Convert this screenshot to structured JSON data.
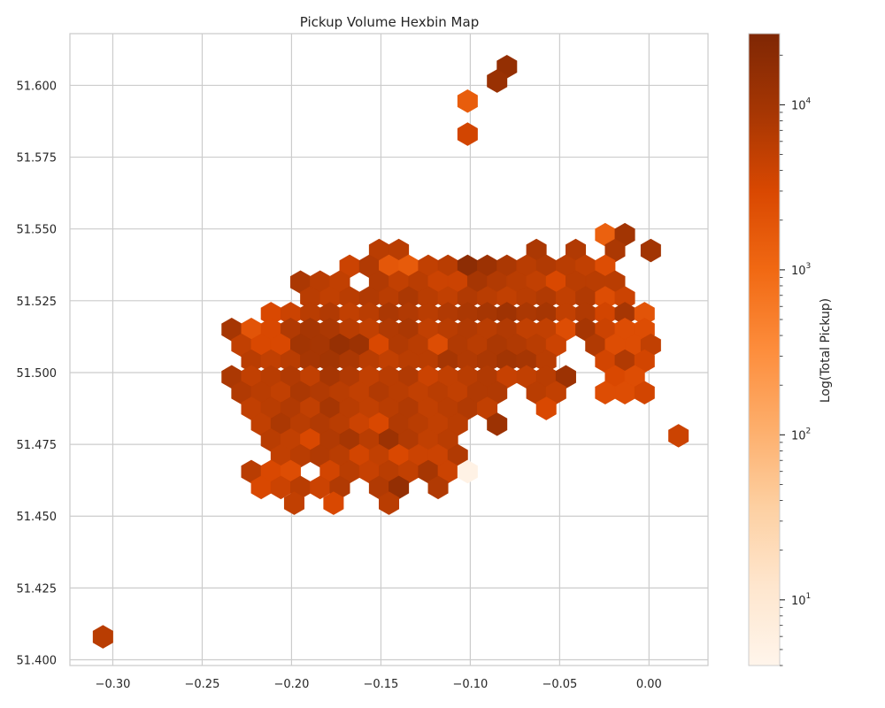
{
  "chart_data": {
    "type": "heatmap",
    "subtype": "hexbin",
    "title": "Pickup Volume Hexbin Map",
    "xlabel": "",
    "ylabel": "",
    "xlim": [
      -0.324,
      0.033
    ],
    "ylim": [
      51.398,
      51.618
    ],
    "x_ticks": [
      -0.3,
      -0.25,
      -0.2,
      -0.15,
      -0.1,
      -0.05,
      0.0
    ],
    "x_tick_labels": [
      "−0.30",
      "−0.25",
      "−0.20",
      "−0.15",
      "−0.10",
      "−0.05",
      "0.00"
    ],
    "y_ticks": [
      51.4,
      51.425,
      51.45,
      51.475,
      51.5,
      51.525,
      51.55,
      51.575,
      51.6
    ],
    "y_tick_labels": [
      "51.400",
      "51.425",
      "51.450",
      "51.475",
      "51.500",
      "51.525",
      "51.550",
      "51.575",
      "51.600"
    ],
    "grid": true,
    "hex_width_x": 0.011,
    "colorbar": {
      "label": "Log(Total Pickup)",
      "scale": "log",
      "colormap": "Oranges",
      "vmin": 4,
      "vmax": 27000,
      "major_ticks": [
        10,
        100,
        1000,
        10000
      ],
      "major_tick_labels": [
        {
          "base": "10",
          "exp": "1"
        },
        {
          "base": "10",
          "exp": "2"
        },
        {
          "base": "10",
          "exp": "3"
        },
        {
          "base": "10",
          "exp": "4"
        }
      ]
    },
    "colors": {
      "cmap": [
        "#fff5eb",
        "#fee6ce",
        "#fdd0a2",
        "#fdae6b",
        "#fd8d3c",
        "#f16913",
        "#d94801",
        "#a63603",
        "#7f2704"
      ],
      "grid": "#cccccc",
      "axes_edge": "#cccccc"
    },
    "hexagons": [
      [
        -0.0795,
        51.6065,
        15000
      ],
      [
        -0.085,
        51.6015,
        13000
      ],
      [
        -0.1015,
        51.5945,
        1500
      ],
      [
        -0.1015,
        51.583,
        3500
      ],
      [
        -0.0245,
        51.548,
        1300
      ],
      [
        -0.0135,
        51.548,
        10000
      ],
      [
        -0.019,
        51.5425,
        8000
      ],
      [
        0.001,
        51.5425,
        10000
      ],
      [
        -0.151,
        51.5425,
        6000
      ],
      [
        -0.14,
        51.5425,
        6000
      ],
      [
        -0.063,
        51.5425,
        8000
      ],
      [
        -0.041,
        51.5425,
        7000
      ],
      [
        -0.1675,
        51.537,
        4000
      ],
      [
        -0.1565,
        51.537,
        7000
      ],
      [
        -0.1455,
        51.537,
        1800
      ],
      [
        -0.1345,
        51.537,
        1600
      ],
      [
        -0.1235,
        51.537,
        5000
      ],
      [
        -0.1125,
        51.537,
        6000
      ],
      [
        -0.1015,
        51.537,
        18000
      ],
      [
        -0.0905,
        51.537,
        12000
      ],
      [
        -0.0795,
        51.537,
        8000
      ],
      [
        -0.0685,
        51.537,
        6000
      ],
      [
        -0.0575,
        51.537,
        7000
      ],
      [
        -0.0465,
        51.537,
        6000
      ],
      [
        -0.0355,
        51.537,
        5000
      ],
      [
        -0.0245,
        51.537,
        2500
      ],
      [
        -0.195,
        51.5315,
        8000
      ],
      [
        -0.184,
        51.5315,
        6000
      ],
      [
        -0.173,
        51.5315,
        5000
      ],
      [
        -0.151,
        51.5315,
        7000
      ],
      [
        -0.14,
        51.5315,
        5000
      ],
      [
        -0.129,
        51.5315,
        6000
      ],
      [
        -0.118,
        51.5315,
        4000
      ],
      [
        -0.107,
        51.5315,
        4000
      ],
      [
        -0.096,
        51.5315,
        9000
      ],
      [
        -0.085,
        51.5315,
        7000
      ],
      [
        -0.074,
        51.5315,
        6000
      ],
      [
        -0.063,
        51.5315,
        5000
      ],
      [
        -0.052,
        51.5315,
        3000
      ],
      [
        -0.041,
        51.5315,
        6000
      ],
      [
        -0.03,
        51.5315,
        6000
      ],
      [
        -0.019,
        51.5315,
        6000
      ],
      [
        -0.1895,
        51.526,
        6000
      ],
      [
        -0.1785,
        51.526,
        5000
      ],
      [
        -0.1675,
        51.526,
        6000
      ],
      [
        -0.1565,
        51.526,
        7000
      ],
      [
        -0.1455,
        51.526,
        6000
      ],
      [
        -0.1345,
        51.526,
        8000
      ],
      [
        -0.1235,
        51.526,
        6000
      ],
      [
        -0.1125,
        51.526,
        5000
      ],
      [
        -0.1015,
        51.526,
        7000
      ],
      [
        -0.0905,
        51.526,
        6000
      ],
      [
        -0.0795,
        51.526,
        5000
      ],
      [
        -0.0685,
        51.526,
        6000
      ],
      [
        -0.0575,
        51.526,
        7000
      ],
      [
        -0.0465,
        51.526,
        5000
      ],
      [
        -0.0355,
        51.526,
        7000
      ],
      [
        -0.0245,
        51.526,
        2500
      ],
      [
        -0.0135,
        51.526,
        4000
      ],
      [
        -0.2115,
        51.5205,
        3000
      ],
      [
        -0.2005,
        51.5205,
        4000
      ],
      [
        -0.1895,
        51.5205,
        6000
      ],
      [
        -0.1785,
        51.5205,
        7000
      ],
      [
        -0.1675,
        51.5205,
        5000
      ],
      [
        -0.1565,
        51.5205,
        6000
      ],
      [
        -0.1455,
        51.5205,
        8000
      ],
      [
        -0.1345,
        51.5205,
        7000
      ],
      [
        -0.1235,
        51.5205,
        6000
      ],
      [
        -0.1125,
        51.5205,
        7000
      ],
      [
        -0.1015,
        51.5205,
        8000
      ],
      [
        -0.0905,
        51.5205,
        9000
      ],
      [
        -0.0795,
        51.5205,
        11000
      ],
      [
        -0.0685,
        51.5205,
        8000
      ],
      [
        -0.0575,
        51.5205,
        9000
      ],
      [
        -0.0465,
        51.5205,
        5000
      ],
      [
        -0.0355,
        51.5205,
        7000
      ],
      [
        -0.0245,
        51.5205,
        3500
      ],
      [
        -0.0135,
        51.5205,
        9000
      ],
      [
        -0.0025,
        51.5205,
        2000
      ],
      [
        -0.2335,
        51.515,
        9000
      ],
      [
        -0.2225,
        51.515,
        2000
      ],
      [
        -0.2115,
        51.515,
        3000
      ],
      [
        -0.2005,
        51.515,
        7000
      ],
      [
        -0.1895,
        51.515,
        9000
      ],
      [
        -0.1785,
        51.515,
        8000
      ],
      [
        -0.1675,
        51.515,
        6000
      ],
      [
        -0.1565,
        51.515,
        5000
      ],
      [
        -0.1455,
        51.515,
        7000
      ],
      [
        -0.1345,
        51.515,
        8000
      ],
      [
        -0.1235,
        51.515,
        5000
      ],
      [
        -0.1125,
        51.515,
        6000
      ],
      [
        -0.1015,
        51.515,
        7000
      ],
      [
        -0.0905,
        51.515,
        6000
      ],
      [
        -0.0795,
        51.515,
        7000
      ],
      [
        -0.0685,
        51.515,
        5000
      ],
      [
        -0.0575,
        51.515,
        5000
      ],
      [
        -0.0465,
        51.515,
        2500
      ],
      [
        -0.0355,
        51.515,
        9000
      ],
      [
        -0.0245,
        51.515,
        4000
      ],
      [
        -0.0135,
        51.515,
        2500
      ],
      [
        -0.0025,
        51.515,
        2500
      ],
      [
        -0.228,
        51.5095,
        5000
      ],
      [
        -0.217,
        51.5095,
        3000
      ],
      [
        -0.206,
        51.5095,
        3000
      ],
      [
        -0.195,
        51.5095,
        10000
      ],
      [
        -0.184,
        51.5095,
        9000
      ],
      [
        -0.173,
        51.5095,
        14000
      ],
      [
        -0.162,
        51.5095,
        12000
      ],
      [
        -0.151,
        51.5095,
        3000
      ],
      [
        -0.14,
        51.5095,
        7000
      ],
      [
        -0.129,
        51.5095,
        6000
      ],
      [
        -0.118,
        51.5095,
        2500
      ],
      [
        -0.107,
        51.5095,
        7000
      ],
      [
        -0.096,
        51.5095,
        6000
      ],
      [
        -0.085,
        51.5095,
        8000
      ],
      [
        -0.074,
        51.5095,
        7000
      ],
      [
        -0.063,
        51.5095,
        6000
      ],
      [
        -0.052,
        51.5095,
        4000
      ],
      [
        -0.03,
        51.5095,
        7000
      ],
      [
        -0.019,
        51.5095,
        2500
      ],
      [
        -0.008,
        51.5095,
        2500
      ],
      [
        0.001,
        51.5095,
        5000
      ],
      [
        -0.2225,
        51.504,
        6000
      ],
      [
        -0.2115,
        51.504,
        5000
      ],
      [
        -0.2005,
        51.504,
        6000
      ],
      [
        -0.1895,
        51.504,
        9000
      ],
      [
        -0.1785,
        51.504,
        10000
      ],
      [
        -0.1675,
        51.504,
        8000
      ],
      [
        -0.1565,
        51.504,
        6000
      ],
      [
        -0.1455,
        51.504,
        5000
      ],
      [
        -0.1345,
        51.504,
        6000
      ],
      [
        -0.1235,
        51.504,
        6000
      ],
      [
        -0.1125,
        51.504,
        9000
      ],
      [
        -0.1015,
        51.504,
        7000
      ],
      [
        -0.0905,
        51.504,
        8000
      ],
      [
        -0.0795,
        51.504,
        10000
      ],
      [
        -0.0685,
        51.504,
        9000
      ],
      [
        -0.0575,
        51.504,
        6000
      ],
      [
        -0.0245,
        51.504,
        3500
      ],
      [
        -0.0135,
        51.504,
        7000
      ],
      [
        -0.0025,
        51.504,
        3500
      ],
      [
        -0.2335,
        51.4985,
        8000
      ],
      [
        -0.2225,
        51.4985,
        5000
      ],
      [
        -0.2115,
        51.4985,
        6000
      ],
      [
        -0.2005,
        51.4985,
        7000
      ],
      [
        -0.1895,
        51.4985,
        5000
      ],
      [
        -0.1785,
        51.4985,
        9000
      ],
      [
        -0.1675,
        51.4985,
        7000
      ],
      [
        -0.1565,
        51.4985,
        5000
      ],
      [
        -0.1455,
        51.4985,
        6000
      ],
      [
        -0.1345,
        51.4985,
        7000
      ],
      [
        -0.1235,
        51.4985,
        4000
      ],
      [
        -0.1125,
        51.4985,
        5000
      ],
      [
        -0.1015,
        51.4985,
        6000
      ],
      [
        -0.0905,
        51.4985,
        7000
      ],
      [
        -0.0795,
        51.4985,
        4500
      ],
      [
        -0.0685,
        51.4985,
        5000
      ],
      [
        -0.0575,
        51.4985,
        6000
      ],
      [
        -0.0465,
        51.4985,
        12000
      ],
      [
        -0.019,
        51.4985,
        3000
      ],
      [
        -0.008,
        51.4985,
        2500
      ],
      [
        -0.228,
        51.493,
        7000
      ],
      [
        -0.217,
        51.493,
        6000
      ],
      [
        -0.206,
        51.493,
        5000
      ],
      [
        -0.195,
        51.493,
        8000
      ],
      [
        -0.184,
        51.493,
        7000
      ],
      [
        -0.173,
        51.493,
        6000
      ],
      [
        -0.162,
        51.493,
        5000
      ],
      [
        -0.151,
        51.493,
        7000
      ],
      [
        -0.14,
        51.493,
        6000
      ],
      [
        -0.129,
        51.493,
        5000
      ],
      [
        -0.118,
        51.493,
        6000
      ],
      [
        -0.107,
        51.493,
        5000
      ],
      [
        -0.096,
        51.493,
        7000
      ],
      [
        -0.085,
        51.493,
        7000
      ],
      [
        -0.063,
        51.493,
        6000
      ],
      [
        -0.052,
        51.493,
        5000
      ],
      [
        -0.0245,
        51.493,
        2500
      ],
      [
        -0.0135,
        51.493,
        2500
      ],
      [
        -0.0025,
        51.493,
        3500
      ],
      [
        -0.2225,
        51.4875,
        5000
      ],
      [
        -0.2115,
        51.4875,
        6000
      ],
      [
        -0.2005,
        51.4875,
        7000
      ],
      [
        -0.1895,
        51.4875,
        5000
      ],
      [
        -0.1785,
        51.4875,
        9000
      ],
      [
        -0.1675,
        51.4875,
        6000
      ],
      [
        -0.1565,
        51.4875,
        5000
      ],
      [
        -0.1455,
        51.4875,
        6000
      ],
      [
        -0.1345,
        51.4875,
        7000
      ],
      [
        -0.1235,
        51.4875,
        5000
      ],
      [
        -0.1125,
        51.4875,
        6000
      ],
      [
        -0.1015,
        51.4875,
        7000
      ],
      [
        -0.0905,
        51.4875,
        5000
      ],
      [
        -0.0575,
        51.4875,
        3000
      ],
      [
        -0.217,
        51.482,
        5000
      ],
      [
        -0.206,
        51.482,
        8000
      ],
      [
        -0.195,
        51.482,
        6000
      ],
      [
        -0.184,
        51.482,
        7000
      ],
      [
        -0.173,
        51.482,
        6000
      ],
      [
        -0.162,
        51.482,
        4000
      ],
      [
        -0.151,
        51.482,
        3000
      ],
      [
        -0.14,
        51.482,
        7000
      ],
      [
        -0.129,
        51.482,
        6000
      ],
      [
        -0.118,
        51.482,
        5000
      ],
      [
        -0.107,
        51.482,
        6000
      ],
      [
        -0.085,
        51.482,
        12000
      ],
      [
        -0.2115,
        51.4765,
        6000
      ],
      [
        -0.2005,
        51.4765,
        5000
      ],
      [
        -0.1895,
        51.4765,
        3000
      ],
      [
        -0.1785,
        51.4765,
        7000
      ],
      [
        -0.1675,
        51.4765,
        9000
      ],
      [
        -0.1565,
        51.4765,
        6000
      ],
      [
        -0.1455,
        51.4765,
        12000
      ],
      [
        -0.1345,
        51.4765,
        7000
      ],
      [
        -0.1235,
        51.4765,
        5000
      ],
      [
        -0.1125,
        51.4765,
        6000
      ],
      [
        -0.206,
        51.471,
        5000
      ],
      [
        -0.195,
        51.471,
        6000
      ],
      [
        -0.184,
        51.471,
        7000
      ],
      [
        -0.173,
        51.471,
        6000
      ],
      [
        -0.162,
        51.471,
        3500
      ],
      [
        -0.151,
        51.471,
        5000
      ],
      [
        -0.14,
        51.471,
        3000
      ],
      [
        -0.129,
        51.471,
        4000
      ],
      [
        -0.118,
        51.471,
        4000
      ],
      [
        -0.107,
        51.471,
        7000
      ],
      [
        -0.2225,
        51.4655,
        6000
      ],
      [
        -0.2115,
        51.4655,
        3000
      ],
      [
        -0.2005,
        51.4655,
        2500
      ],
      [
        -0.1785,
        51.4655,
        3500
      ],
      [
        -0.1675,
        51.4655,
        6000
      ],
      [
        -0.1565,
        51.4655,
        4500
      ],
      [
        -0.1455,
        51.4655,
        6000
      ],
      [
        -0.1345,
        51.4655,
        5000
      ],
      [
        -0.1235,
        51.4655,
        9000
      ],
      [
        -0.1125,
        51.4655,
        4000
      ],
      [
        -0.1015,
        51.4655,
        5
      ],
      [
        -0.217,
        51.46,
        3000
      ],
      [
        -0.206,
        51.46,
        4000
      ],
      [
        -0.195,
        51.46,
        6000
      ],
      [
        -0.184,
        51.46,
        4000
      ],
      [
        -0.173,
        51.46,
        7000
      ],
      [
        -0.151,
        51.46,
        7000
      ],
      [
        -0.14,
        51.46,
        15000
      ],
      [
        -0.118,
        51.46,
        7000
      ],
      [
        -0.1985,
        51.4545,
        5000
      ],
      [
        -0.1765,
        51.4545,
        3000
      ],
      [
        -0.1455,
        51.4545,
        6000
      ],
      [
        0.0165,
        51.478,
        4000
      ],
      [
        -0.3055,
        51.408,
        6000
      ]
    ]
  }
}
